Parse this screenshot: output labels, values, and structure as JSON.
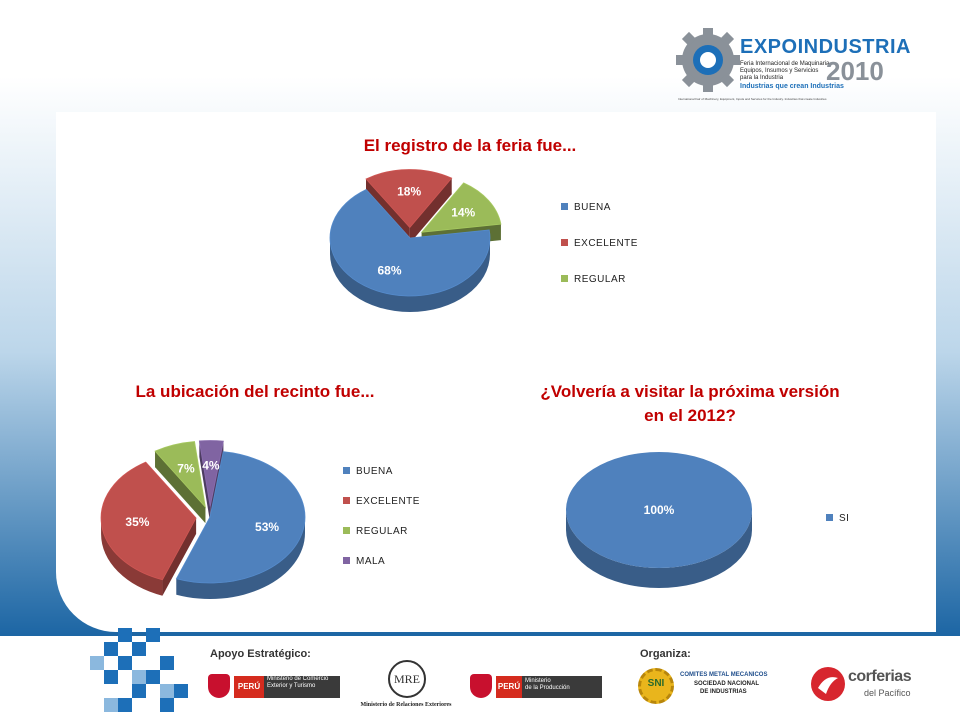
{
  "header": {
    "logo_title": "EXPOINDUSTRIA",
    "logo_year": "2010",
    "logo_lines": [
      "Feria Internacional de Maquinaria,",
      "Equipos, Insumos y Servicios",
      "para la Industria"
    ],
    "logo_tagline": "Industrias que crean Industrias",
    "logo_subline": "International Fair of Machinery, Equipment, Inputs and Services for the Industry. Industries that create Industries"
  },
  "chart_data": [
    {
      "type": "pie",
      "title": "El registro de la feria fue...",
      "categories": [
        "BUENA",
        "EXCELENTE",
        "REGULAR"
      ],
      "values": [
        68,
        18,
        14
      ],
      "labels": [
        "68%",
        "18%",
        "14%"
      ],
      "colors": [
        "#4f81bd",
        "#c0504d",
        "#9bbb59"
      ],
      "legend": "right",
      "style": "3d-exploded"
    },
    {
      "type": "pie",
      "title": "La ubicación del recinto fue...",
      "categories": [
        "BUENA",
        "EXCELENTE",
        "REGULAR",
        "MALA"
      ],
      "values": [
        53,
        35,
        7,
        4
      ],
      "labels": [
        "53%",
        "35%",
        "7%",
        "4%"
      ],
      "colors": [
        "#4f81bd",
        "#c0504d",
        "#9bbb59",
        "#8064a2"
      ],
      "legend": "right",
      "style": "3d-exploded"
    },
    {
      "type": "pie",
      "title": "¿Volvería a visitar la próxima versión en el 2012?",
      "categories": [
        "SI"
      ],
      "values": [
        100
      ],
      "labels": [
        "100%"
      ],
      "colors": [
        "#4f81bd"
      ],
      "legend": "right",
      "style": "3d"
    }
  ],
  "footer": {
    "support_label": "Apoyo Estratégico:",
    "organizer_label": "Organiza:",
    "peru_label": "PERÚ",
    "mincetur": "Ministerio de Comercio Exterior y Turismo",
    "ministerio_label": "Ministerio",
    "produccion": "de la Producción",
    "mre_seal": "MRE",
    "rree": "Ministerio de Relaciones Exteriores",
    "sni_logo": "SNI",
    "sni_line1": "COMITES METAL MECANICOS",
    "sni_line2": "SOCIEDAD NACIONAL",
    "sni_line3": "DE INDUSTRIAS",
    "corferias": "corferias",
    "corferias_sub": "del Pacífico"
  }
}
